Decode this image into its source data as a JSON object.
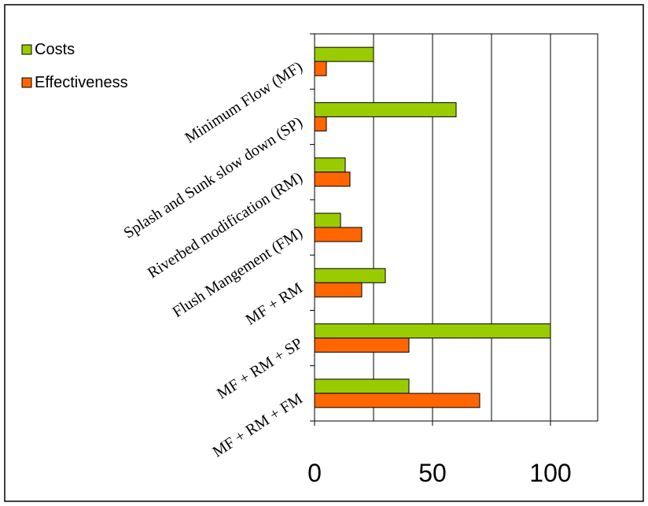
{
  "chart_data": {
    "type": "bar",
    "orientation": "horizontal",
    "categories": [
      "Minimum Flow (MF)",
      "Splash and Sunk slow down (SP)",
      "Riverbed modification (RM)",
      "Flush Mangement (FM)",
      "MF + RM",
      "MF + RM + SP",
      "MF + RM + FM"
    ],
    "series": [
      {
        "name": "Costs",
        "color": "#99cc00",
        "values": [
          25,
          60,
          13,
          11,
          30,
          100,
          40
        ]
      },
      {
        "name": "Effectiveness",
        "color": "#ff6600",
        "values": [
          5,
          5,
          15,
          20,
          20,
          40,
          70
        ]
      }
    ],
    "xlim": [
      0,
      120
    ],
    "xticks": [
      0,
      50,
      100
    ],
    "gridlines": [
      25,
      50,
      75,
      100,
      125
    ],
    "grid": true,
    "legend_position": "top-left"
  }
}
